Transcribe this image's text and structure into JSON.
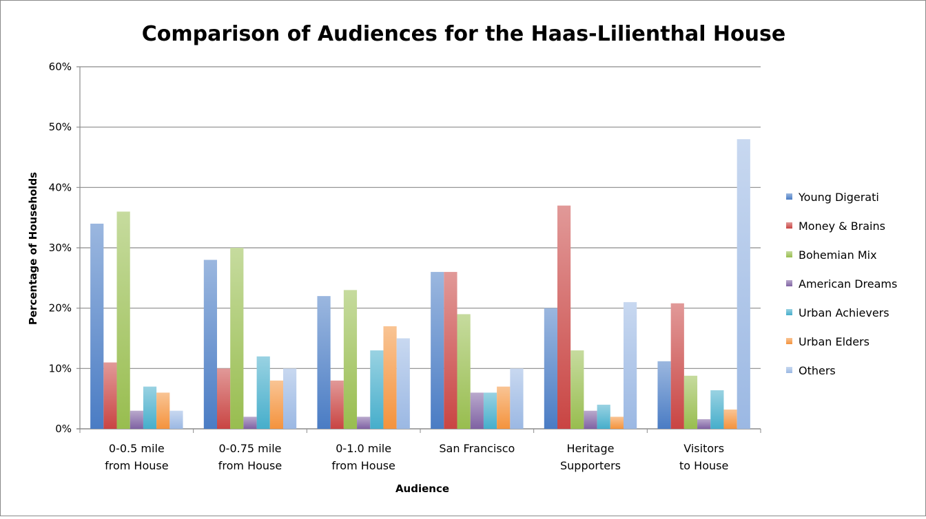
{
  "chart_data": {
    "type": "bar",
    "title": "Comparison of Audiences for the Haas-Lilienthal House",
    "xlabel": "Audience",
    "ylabel": "Percentage of Households",
    "ylim": [
      0,
      60
    ],
    "yticks": [
      "0%",
      "10%",
      "20%",
      "30%",
      "40%",
      "50%",
      "60%"
    ],
    "grid": true,
    "legend_position": "right",
    "categories": [
      [
        "0-0.5 mile",
        "from House"
      ],
      [
        "0-0.75 mile",
        "from House"
      ],
      [
        "0-1.0 mile",
        "from House"
      ],
      [
        "San Francisco"
      ],
      [
        "Heritage",
        "Supporters"
      ],
      [
        "Visitors",
        "to House"
      ]
    ],
    "series": [
      {
        "name": "Young Digerati",
        "color": "#4a7cc4",
        "values": [
          34,
          28,
          22,
          26,
          20,
          11.2
        ]
      },
      {
        "name": "Money & Brains",
        "color": "#c94543",
        "values": [
          11,
          10,
          8,
          26,
          37,
          20.8
        ]
      },
      {
        "name": "Bohemian Mix",
        "color": "#98bd4f",
        "values": [
          36,
          30,
          23,
          19,
          13,
          8.8
        ]
      },
      {
        "name": "American Dreams",
        "color": "#7f62a3",
        "values": [
          3,
          2,
          2,
          6,
          3,
          1.6
        ]
      },
      {
        "name": "Urban Achievers",
        "color": "#46aecb",
        "values": [
          7,
          12,
          13,
          6,
          4,
          6.4
        ]
      },
      {
        "name": "Urban Elders",
        "color": "#f4933d",
        "values": [
          6,
          8,
          17,
          7,
          2,
          3.2
        ]
      },
      {
        "name": "Others",
        "color": "#9bb8e3",
        "values": [
          3,
          10,
          15,
          10,
          21,
          48
        ]
      }
    ]
  }
}
